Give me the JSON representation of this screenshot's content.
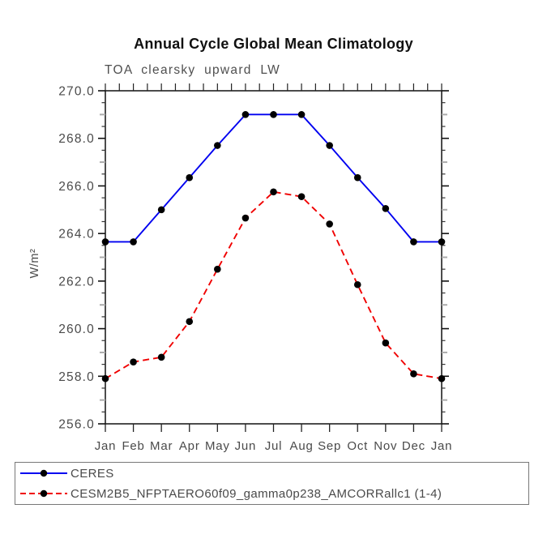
{
  "header": {
    "title": "Annual Cycle Global Mean Climatology",
    "subtitle": "TOA clearsky upward LW"
  },
  "chart_data": {
    "type": "line",
    "title": "Annual Cycle Global Mean Climatology",
    "subtitle": "TOA clearsky upward LW",
    "ylabel": "W/m²",
    "xlabel": "",
    "ylim": [
      256.0,
      270.0
    ],
    "y_major_step": 2.0,
    "y_minor_step": 0.5,
    "y_tick_labels": [
      "256.0",
      "258.0",
      "260.0",
      "262.0",
      "264.0",
      "266.0",
      "268.0",
      "270.0"
    ],
    "x_tick_labels": [
      "Jan",
      "Feb",
      "Mar",
      "Apr",
      "May",
      "Jun",
      "Jul",
      "Aug",
      "Sep",
      "Oct",
      "Nov",
      "Dec",
      "Jan"
    ],
    "top_axis_minor_ticks_per_month": 2,
    "grid": false,
    "legend_position": "bottom-left-box",
    "frame_color": "#111111",
    "series": [
      {
        "name": "CERES",
        "color": "#0000f0",
        "style": "solid",
        "marker": "circle",
        "marker_color": "#000000",
        "values": [
          263.65,
          263.65,
          265.0,
          266.35,
          267.7,
          269.0,
          269.0,
          269.0,
          267.7,
          266.35,
          265.05,
          263.65,
          263.65
        ]
      },
      {
        "name": "CESM2B5_NFPTAERO60f09_gamma0p238_AMCORRallc1 (1-4)",
        "color": "#f00000",
        "style": "dashed",
        "marker": "circle",
        "marker_color": "#000000",
        "values": [
          257.9,
          258.6,
          258.8,
          260.3,
          262.5,
          264.65,
          265.75,
          265.55,
          264.4,
          261.85,
          259.4,
          258.1,
          257.9
        ]
      }
    ]
  }
}
